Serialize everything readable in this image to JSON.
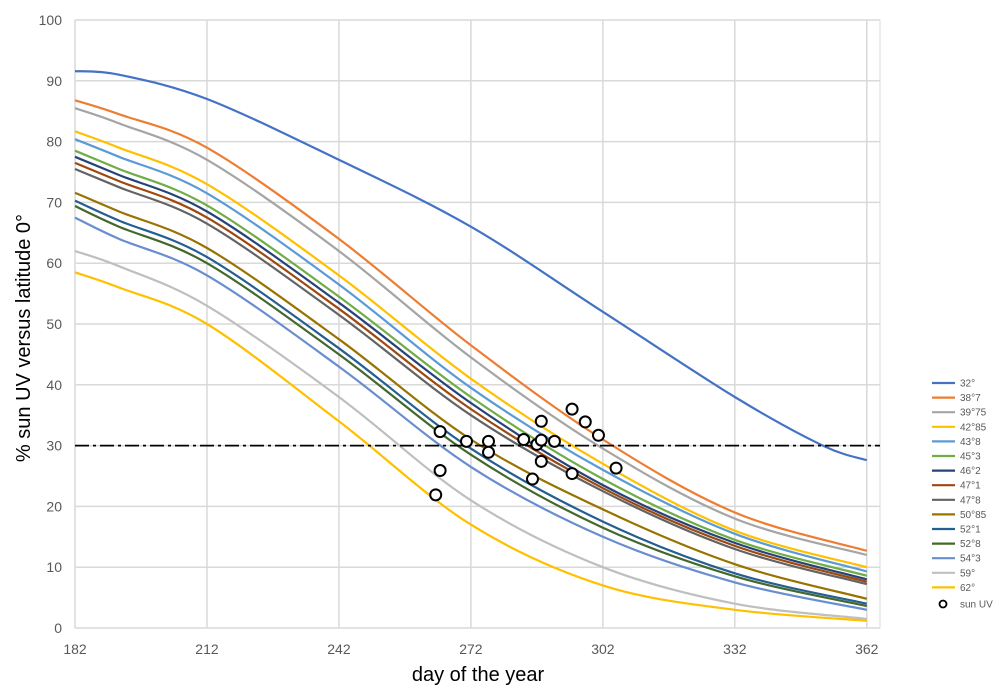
{
  "chart_data": {
    "type": "line",
    "xlabel": "day of the year",
    "ylabel": "% sun UV versus latitude 0°",
    "xlim": [
      182,
      365
    ],
    "ylim": [
      0,
      100
    ],
    "x_ticks": [
      "182",
      "212",
      "242",
      "272",
      "302",
      "332",
      "362"
    ],
    "y_ticks": [
      "0",
      "10",
      "20",
      "30",
      "40",
      "50",
      "60",
      "70",
      "80",
      "90",
      "100"
    ],
    "grid": true,
    "legend_position": "right",
    "reference_line": {
      "y": 30,
      "style": "dash-dot",
      "color": "#000000"
    },
    "series": [
      {
        "name": "32°",
        "color": "#4472C4",
        "x": [
          182,
          192,
          212,
          242,
          272,
          302,
          332,
          352,
          362
        ],
        "values": [
          91.6,
          91.0,
          87.0,
          77.0,
          66.0,
          52.0,
          38.0,
          30.0,
          27.6
        ]
      },
      {
        "name": "38°7",
        "color": "#ED7D31",
        "x": [
          182,
          192,
          212,
          242,
          272,
          302,
          332,
          362
        ],
        "values": [
          86.8,
          84.5,
          79.0,
          64.0,
          46.5,
          31.0,
          19.0,
          12.7
        ]
      },
      {
        "name": "39°75",
        "color": "#A5A5A5",
        "x": [
          182,
          192,
          212,
          242,
          272,
          302,
          332,
          362
        ],
        "values": [
          85.5,
          83.0,
          77.0,
          62.0,
          44.5,
          29.5,
          18.0,
          12.0
        ]
      },
      {
        "name": "42°85",
        "color": "#FFC000",
        "x": [
          182,
          192,
          212,
          242,
          272,
          302,
          332,
          362
        ],
        "values": [
          81.7,
          79.0,
          73.0,
          58.0,
          41.0,
          27.0,
          16.0,
          10.0
        ]
      },
      {
        "name": "43°8",
        "color": "#5B9BD5",
        "x": [
          182,
          192,
          212,
          242,
          272,
          302,
          332,
          362
        ],
        "values": [
          80.4,
          77.5,
          71.5,
          56.5,
          39.5,
          26.0,
          15.5,
          9.3
        ]
      },
      {
        "name": "45°3",
        "color": "#70AD47",
        "x": [
          182,
          192,
          212,
          242,
          272,
          302,
          332,
          362
        ],
        "values": [
          78.5,
          75.5,
          69.5,
          54.5,
          38.0,
          24.5,
          14.5,
          8.6
        ]
      },
      {
        "name": "46°2",
        "color": "#264478",
        "x": [
          182,
          192,
          212,
          242,
          272,
          302,
          332,
          362
        ],
        "values": [
          77.5,
          74.5,
          68.5,
          53.5,
          37.0,
          23.5,
          14.0,
          8.0
        ]
      },
      {
        "name": "47°1",
        "color": "#9E480E",
        "x": [
          182,
          192,
          212,
          242,
          272,
          302,
          332,
          362
        ],
        "values": [
          76.5,
          73.5,
          67.5,
          52.5,
          36.0,
          23.0,
          13.5,
          7.6
        ]
      },
      {
        "name": "47°8",
        "color": "#636363",
        "x": [
          182,
          192,
          212,
          242,
          272,
          302,
          332,
          362
        ],
        "values": [
          75.5,
          72.5,
          66.5,
          51.5,
          35.0,
          22.5,
          13.0,
          7.2
        ]
      },
      {
        "name": "50°85",
        "color": "#997300",
        "x": [
          182,
          192,
          212,
          242,
          272,
          302,
          332,
          362
        ],
        "values": [
          71.6,
          68.5,
          62.5,
          47.5,
          31.0,
          19.5,
          10.5,
          4.8
        ]
      },
      {
        "name": "52°1",
        "color": "#255E91",
        "x": [
          182,
          192,
          212,
          242,
          272,
          302,
          332,
          362
        ],
        "values": [
          70.3,
          67.0,
          61.0,
          46.0,
          29.5,
          17.5,
          9.0,
          4.0
        ]
      },
      {
        "name": "52°8",
        "color": "#43682B",
        "x": [
          182,
          192,
          212,
          242,
          272,
          302,
          332,
          362
        ],
        "values": [
          69.4,
          66.0,
          60.0,
          45.0,
          28.5,
          16.5,
          8.5,
          3.6
        ]
      },
      {
        "name": "54°3",
        "color": "#698ED0",
        "x": [
          182,
          192,
          212,
          242,
          272,
          302,
          332,
          362
        ],
        "values": [
          67.5,
          64.0,
          58.0,
          43.0,
          26.5,
          15.0,
          7.5,
          3.0
        ]
      },
      {
        "name": "59°",
        "color": "#BFBFBF",
        "x": [
          182,
          192,
          212,
          242,
          272,
          302,
          332,
          362
        ],
        "values": [
          62.0,
          59.5,
          53.0,
          38.0,
          21.0,
          10.0,
          4.0,
          1.5
        ]
      },
      {
        "name": "62°",
        "color": "#FFC000",
        "x": [
          182,
          192,
          212,
          242,
          272,
          302,
          332,
          362
        ],
        "values": [
          58.5,
          56.0,
          50.0,
          34.0,
          17.0,
          7.0,
          3.0,
          1.2
        ]
      }
    ],
    "scatter": {
      "name": "sun UV",
      "points": [
        [
          265,
          32.3
        ],
        [
          265,
          25.9
        ],
        [
          264,
          21.9
        ],
        [
          271,
          30.7
        ],
        [
          276,
          30.7
        ],
        [
          276,
          28.9
        ],
        [
          284,
          31.0
        ],
        [
          287,
          30.2
        ],
        [
          288,
          27.4
        ],
        [
          288,
          30.9
        ],
        [
          288,
          34.0
        ],
        [
          286,
          24.5
        ],
        [
          291,
          30.7
        ],
        [
          295,
          36.0
        ],
        [
          295,
          25.4
        ],
        [
          298,
          33.9
        ],
        [
          301,
          31.7
        ],
        [
          305,
          26.3
        ]
      ]
    }
  }
}
